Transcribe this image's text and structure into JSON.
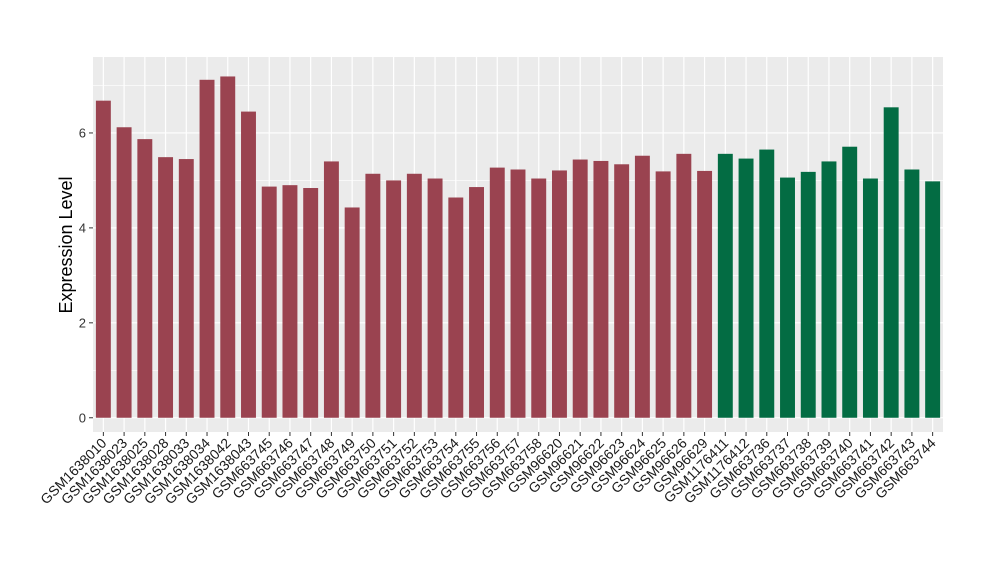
{
  "chart_data": {
    "type": "bar",
    "ylabel": "Expression Level",
    "xlabel": "",
    "ylim": [
      -0.3,
      7.6
    ],
    "yticks": [
      0,
      2,
      4,
      6
    ],
    "grid": true,
    "legend": "none",
    "colors": {
      "group_a": "#9a4350",
      "group_b": "#036c43",
      "panel": "#ebebeb",
      "grid": "#ffffff"
    },
    "categories": [
      "GSM1638010",
      "GSM1638023",
      "GSM1638025",
      "GSM1638028",
      "GSM1638033",
      "GSM1638034",
      "GSM1638042",
      "GSM1638043",
      "GSM663745",
      "GSM663746",
      "GSM663747",
      "GSM663748",
      "GSM663749",
      "GSM663750",
      "GSM663751",
      "GSM663752",
      "GSM663753",
      "GSM663754",
      "GSM663755",
      "GSM663756",
      "GSM663757",
      "GSM663758",
      "GSM96620",
      "GSM96621",
      "GSM96622",
      "GSM96623",
      "GSM96624",
      "GSM96625",
      "GSM96626",
      "GSM96629",
      "GSM1176411",
      "GSM1176412",
      "GSM663736",
      "GSM663737",
      "GSM663738",
      "GSM663739",
      "GSM663740",
      "GSM663741",
      "GSM663742",
      "GSM663743",
      "GSM663744"
    ],
    "values": [
      6.68,
      6.12,
      5.87,
      5.49,
      5.45,
      7.12,
      7.19,
      6.45,
      4.87,
      4.9,
      4.84,
      5.4,
      4.43,
      5.14,
      5.0,
      5.14,
      5.04,
      4.64,
      4.86,
      5.27,
      5.23,
      5.04,
      5.21,
      5.44,
      5.41,
      5.34,
      5.52,
      5.19,
      5.56,
      5.2,
      5.56,
      5.46,
      5.65,
      5.06,
      5.18,
      5.4,
      5.71,
      5.04,
      6.54,
      5.23,
      4.98
    ],
    "groups": [
      "a",
      "a",
      "a",
      "a",
      "a",
      "a",
      "a",
      "a",
      "a",
      "a",
      "a",
      "a",
      "a",
      "a",
      "a",
      "a",
      "a",
      "a",
      "a",
      "a",
      "a",
      "a",
      "a",
      "a",
      "a",
      "a",
      "a",
      "a",
      "a",
      "a",
      "b",
      "b",
      "b",
      "b",
      "b",
      "b",
      "b",
      "b",
      "b",
      "b",
      "b"
    ]
  }
}
